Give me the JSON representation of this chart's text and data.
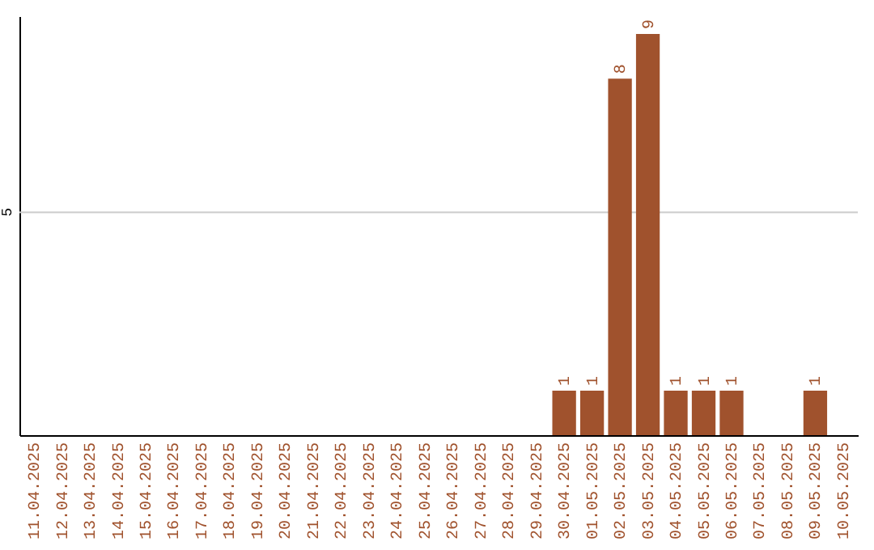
{
  "chart_data": {
    "type": "bar",
    "ylim": [
      0,
      9.4
    ],
    "categories": [
      "11.04.2025",
      "12.04.2025",
      "13.04.2025",
      "14.04.2025",
      "15.04.2025",
      "16.04.2025",
      "17.04.2025",
      "18.04.2025",
      "19.04.2025",
      "20.04.2025",
      "21.04.2025",
      "22.04.2025",
      "23.04.2025",
      "24.04.2025",
      "25.04.2025",
      "26.04.2025",
      "27.04.2025",
      "28.04.2025",
      "29.04.2025",
      "30.04.2025",
      "01.05.2025",
      "02.05.2025",
      "03.05.2025",
      "04.05.2025",
      "05.05.2025",
      "06.05.2025",
      "07.05.2025",
      "08.05.2025",
      "09.05.2025",
      "10.05.2025"
    ],
    "values": [
      null,
      null,
      null,
      null,
      null,
      null,
      null,
      null,
      null,
      null,
      null,
      null,
      null,
      null,
      null,
      null,
      null,
      null,
      null,
      1,
      1,
      8,
      9,
      1,
      1,
      1,
      null,
      null,
      1,
      null
    ],
    "data_labels": true,
    "color": "#a0522d",
    "ref_lines": [
      {
        "axis": "y",
        "value": 5,
        "label": "5",
        "color": "#cccccc"
      }
    ]
  }
}
